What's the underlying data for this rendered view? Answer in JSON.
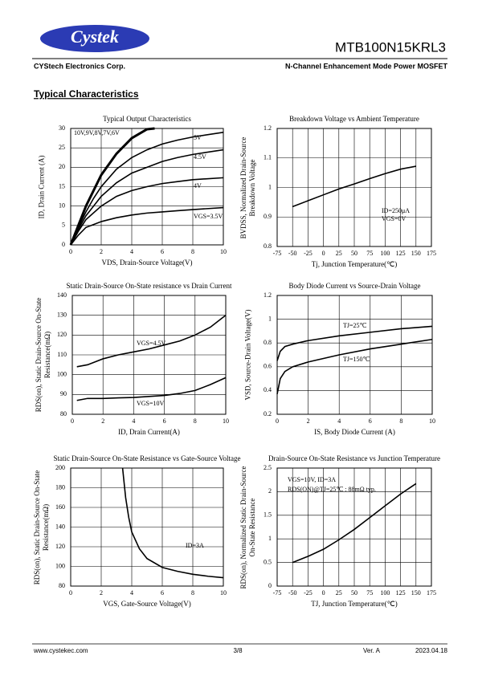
{
  "header": {
    "logo": "Cystek",
    "part_number": "MTB100N15KRL3",
    "company": "CYStech Electronics Corp.",
    "description": "N-Channel Enhancement Mode Power MOSFET"
  },
  "section_title": "Typical Characteristics",
  "chart_data": [
    {
      "type": "line",
      "title": "Typical Output Characteristics",
      "x_label": "VDS, Drain-Source Voltage(V)",
      "y_label": "ID, Drain Current (A)",
      "xlim": [
        0,
        10
      ],
      "xticks": [
        0,
        2,
        4,
        6,
        8,
        10
      ],
      "ylim": [
        0,
        30
      ],
      "yticks": [
        0,
        5,
        10,
        15,
        20,
        25,
        30
      ],
      "grid": true,
      "series": [
        {
          "name": "10V,9V,8V,7V,6V",
          "color": "#000000",
          "x": [
            0,
            0.5,
            1,
            1.5,
            2,
            3,
            4,
            5,
            5.5
          ],
          "values": [
            0,
            5,
            10,
            14,
            18,
            23.5,
            27.5,
            29.8,
            30
          ]
        },
        {
          "name": "5V",
          "color": "#000000",
          "x": [
            0,
            0.5,
            1,
            1.5,
            2,
            3,
            4,
            5,
            6,
            7,
            8,
            10
          ],
          "values": [
            0,
            4.5,
            8.5,
            12,
            15,
            19.5,
            22.5,
            24.5,
            26,
            27,
            27.8,
            29
          ]
        },
        {
          "name": "4.5V",
          "color": "#000000",
          "x": [
            0,
            0.5,
            1,
            2,
            3,
            4,
            5,
            6,
            7,
            8,
            10
          ],
          "values": [
            0,
            4,
            7.5,
            12.5,
            16,
            18.5,
            20,
            21.5,
            22.5,
            23.3,
            24.5
          ]
        },
        {
          "name": "4V",
          "color": "#000000",
          "x": [
            0,
            0.5,
            1,
            2,
            3,
            4,
            5,
            6,
            7,
            8,
            10
          ],
          "values": [
            0,
            3.5,
            6.5,
            10,
            12.5,
            14,
            15,
            15.8,
            16.3,
            16.8,
            17.3
          ]
        },
        {
          "name": "VGS=3.5V",
          "color": "#000000",
          "x": [
            0,
            0.5,
            1,
            2,
            3,
            4,
            5,
            6,
            7,
            8,
            10
          ],
          "values": [
            0,
            2.5,
            4.5,
            6,
            7,
            7.7,
            8.2,
            8.5,
            8.8,
            9.1,
            9.6
          ]
        }
      ]
    },
    {
      "type": "line",
      "title": "Breakdown Voltage vs Ambient Temperature",
      "x_label": "Tj, Junction Temperature(℃)",
      "y_label": "BVDSS, Normalized Drain-Source Breakdown Voltage",
      "xlim": [
        -75,
        175
      ],
      "xticks": [
        -75,
        -50,
        -25,
        0,
        25,
        50,
        75,
        100,
        125,
        150,
        175
      ],
      "ylim": [
        0.8,
        1.2
      ],
      "yticks": [
        0.8,
        0.9,
        1,
        1.1,
        1.2
      ],
      "grid": true,
      "annotations": [
        "ID=250μA",
        "VGS=0V"
      ],
      "series": [
        {
          "color": "#000000",
          "x": [
            -50,
            -25,
            0,
            25,
            50,
            75,
            100,
            125,
            150
          ],
          "values": [
            0.935,
            0.955,
            0.975,
            0.995,
            1.012,
            1.03,
            1.047,
            1.062,
            1.072
          ]
        }
      ]
    },
    {
      "type": "line",
      "title": "Static Drain-Source On-State resistance vs Drain Current",
      "x_label": "ID, Drain Current(A)",
      "y_label": "RDS(on), Static Drain-Source On-State Resistance(mΩ)",
      "xlim": [
        0,
        10
      ],
      "xticks": [
        0,
        2,
        4,
        6,
        8,
        10
      ],
      "ylim": [
        80,
        140
      ],
      "yticks": [
        80,
        90,
        100,
        110,
        120,
        130,
        140
      ],
      "grid": true,
      "series": [
        {
          "name": "VGS=4.5V",
          "color": "#000000",
          "x": [
            0.3,
            1,
            2,
            3,
            4,
            5,
            6,
            7,
            8,
            9,
            10
          ],
          "values": [
            104,
            105,
            108,
            110,
            111.5,
            113,
            115,
            117,
            120,
            124,
            130
          ]
        },
        {
          "name": "VGS=10V",
          "color": "#000000",
          "x": [
            0.3,
            1,
            2,
            3,
            4,
            5,
            6,
            7,
            8,
            9,
            10
          ],
          "values": [
            87,
            88,
            88,
            88.3,
            88.5,
            89,
            89.5,
            90.5,
            92,
            95,
            98.5
          ]
        }
      ]
    },
    {
      "type": "line",
      "title": "Body Diode Current vs Source-Drain Voltage",
      "x_label": "IS, Body Diode Current (A)",
      "y_label": "VSD, Source-Drain Voltage(V)",
      "xlim": [
        0,
        10
      ],
      "xticks": [
        0,
        2,
        4,
        6,
        8,
        10
      ],
      "ylim": [
        0.2,
        1.2
      ],
      "yticks": [
        0.2,
        0.4,
        0.6,
        0.8,
        1,
        1.2
      ],
      "grid": true,
      "series": [
        {
          "name": "TJ=25℃",
          "color": "#000000",
          "x": [
            0,
            0.2,
            0.5,
            1,
            2,
            4,
            6,
            8,
            10
          ],
          "values": [
            0.65,
            0.73,
            0.77,
            0.79,
            0.82,
            0.86,
            0.89,
            0.92,
            0.94
          ]
        },
        {
          "name": "TJ=150℃",
          "color": "#000000",
          "x": [
            0,
            0.2,
            0.5,
            1,
            2,
            4,
            6,
            8,
            10
          ],
          "values": [
            0.37,
            0.5,
            0.56,
            0.6,
            0.64,
            0.7,
            0.75,
            0.79,
            0.83
          ]
        }
      ]
    },
    {
      "type": "line",
      "title": "Static Drain-Source On-State Resistance vs Gate-Source Voltage",
      "x_label": "VGS, Gate-Source Voltage(V)",
      "y_label": "RDS(on), Static Drain-Source On-State Resistance(mΩ)",
      "xlim": [
        0,
        10
      ],
      "xticks": [
        0,
        2,
        4,
        6,
        8,
        10
      ],
      "ylim": [
        80,
        200
      ],
      "yticks": [
        80,
        100,
        120,
        140,
        160,
        180,
        200
      ],
      "grid": true,
      "annotations": [
        "ID=3A"
      ],
      "series": [
        {
          "color": "#000000",
          "x": [
            3.4,
            3.6,
            3.8,
            4,
            4.5,
            5,
            6,
            7,
            8,
            9,
            10
          ],
          "values": [
            200,
            170,
            150,
            135,
            118,
            108,
            99,
            95,
            92,
            90,
            88.5
          ]
        }
      ]
    },
    {
      "type": "line",
      "title": "Drain-Source On-State Resistance vs Junction Temperature",
      "x_label": "TJ, Junction Temperature(℃)",
      "y_label": "RDS(on), Normalized Static Drain-Source On-State Resistance",
      "xlim": [
        -75,
        175
      ],
      "xticks": [
        -75,
        -50,
        -25,
        0,
        25,
        50,
        75,
        100,
        125,
        150,
        175
      ],
      "ylim": [
        0,
        2.5
      ],
      "yticks": [
        0,
        0.5,
        1,
        1.5,
        2,
        2.5
      ],
      "grid": true,
      "annotations": [
        "VGS=10V, ID=3A",
        "RDS(ON)@TJ=25℃ : 88mΩ typ."
      ],
      "series": [
        {
          "color": "#000000",
          "x": [
            -50,
            -25,
            0,
            25,
            50,
            75,
            100,
            125,
            150
          ],
          "values": [
            0.5,
            0.63,
            0.78,
            0.98,
            1.2,
            1.45,
            1.7,
            1.95,
            2.17
          ]
        }
      ]
    }
  ],
  "footer": {
    "website": "www.cystekec.com",
    "page": "3/8",
    "version": "Ver. A",
    "date": "2023.04.18"
  }
}
